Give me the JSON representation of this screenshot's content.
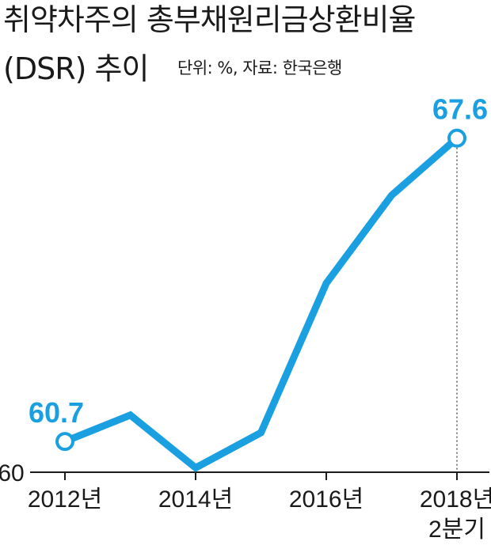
{
  "header": {
    "title_line1": "취약차주의 총부채원리금상환비율",
    "title_line2": "(DSR) 추이",
    "unit_source": "단위: %, 자료: 한국은행"
  },
  "colors": {
    "line": "#1aa0e0",
    "text": "#1a1a1a",
    "axis": "#1a1a1a"
  },
  "chart_data": {
    "type": "line",
    "title": "취약차주의 총부채원리금상환비율 (DSR) 추이",
    "xlabel": "",
    "ylabel": "",
    "x": [
      "2012",
      "2013",
      "2014",
      "2015",
      "2016",
      "2017",
      "2018 2Q"
    ],
    "x_tick_labels": [
      "2012년",
      "",
      "2014년",
      "",
      "2016년",
      "",
      "2018년\n2분기"
    ],
    "series": [
      {
        "values": [
          60.7,
          61.3,
          60.1,
          60.9,
          64.3,
          66.3,
          67.6
        ]
      }
    ],
    "y_tick_labels": [
      "60"
    ],
    "ylim": [
      60,
      68.8
    ],
    "data_labels": [
      {
        "index": 0,
        "text": "60.7"
      },
      {
        "index": 6,
        "text": "67.6"
      }
    ],
    "grid": false,
    "legend": "none"
  }
}
